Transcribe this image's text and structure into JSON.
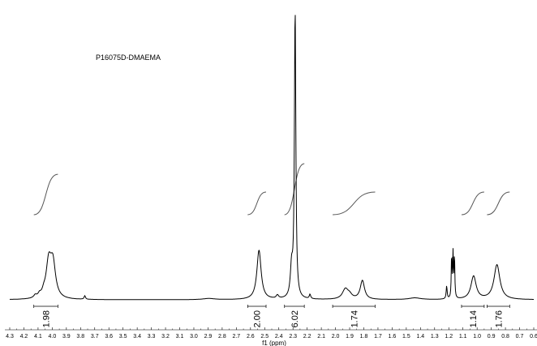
{
  "chart_data": {
    "type": "line",
    "title": "P16075D-DMAEMA",
    "xlabel": "f1 (ppm)",
    "xlim": [
      4.3,
      0.6
    ],
    "x_reversed": true,
    "ticks": [
      "4.3",
      "4.2",
      "4.1",
      "4.0",
      "3.9",
      "3.8",
      "3.7",
      "3.6",
      "3.5",
      "3.4",
      "3.3",
      "3.2",
      "3.1",
      "3.0",
      "2.9",
      "2.8",
      "2.7",
      "2.6",
      "2.5",
      "2.4",
      "2.3",
      "2.2",
      "2.1",
      "2.0",
      "1.9",
      "1.8",
      "1.7",
      "1.6",
      "1.5",
      "1.4",
      "1.3",
      "1.2",
      "1.1",
      "1.0",
      "0.9",
      "0.8",
      "0.7",
      "0.6"
    ],
    "tick_values": [
      4.3,
      4.2,
      4.1,
      4.0,
      3.9,
      3.8,
      3.7,
      3.6,
      3.5,
      3.4,
      3.3,
      3.2,
      3.1,
      3.0,
      2.9,
      2.8,
      2.7,
      2.6,
      2.5,
      2.4,
      2.3,
      2.2,
      2.1,
      2.0,
      1.9,
      1.8,
      1.7,
      1.6,
      1.5,
      1.4,
      1.3,
      1.2,
      1.1,
      1.0,
      0.9,
      0.8,
      0.7,
      0.6
    ],
    "peaks": [
      {
        "ppm": 4.12,
        "height": 0.009,
        "width": 0.012
      },
      {
        "ppm": 4.09,
        "height": 0.01,
        "width": 0.012
      },
      {
        "ppm": 4.06,
        "height": 0.012,
        "width": 0.012
      },
      {
        "ppm": 4.025,
        "height": 0.12,
        "width": 0.022
      },
      {
        "ppm": 3.995,
        "height": 0.115,
        "width": 0.022
      },
      {
        "ppm": 3.77,
        "height": 0.012,
        "width": 0.006
      },
      {
        "ppm": 2.895,
        "height": 0.004,
        "width": 0.05
      },
      {
        "ppm": 2.54,
        "height": 0.17,
        "width": 0.018
      },
      {
        "ppm": 2.41,
        "height": 0.012,
        "width": 0.01
      },
      {
        "ppm": 2.31,
        "height": 0.1,
        "width": 0.01
      },
      {
        "ppm": 2.285,
        "height": 1.0,
        "width": 0.006
      },
      {
        "ppm": 2.18,
        "height": 0.015,
        "width": 0.006
      },
      {
        "ppm": 1.93,
        "height": 0.035,
        "width": 0.025
      },
      {
        "ppm": 1.9,
        "height": 0.012,
        "width": 0.02
      },
      {
        "ppm": 1.81,
        "height": 0.065,
        "width": 0.018
      },
      {
        "ppm": 1.44,
        "height": 0.006,
        "width": 0.05
      },
      {
        "ppm": 1.215,
        "height": 0.045,
        "width": 0.004
      },
      {
        "ppm": 1.18,
        "height": 0.15,
        "width": 0.003
      },
      {
        "ppm": 1.17,
        "height": 0.15,
        "width": 0.003
      },
      {
        "ppm": 1.16,
        "height": 0.15,
        "width": 0.003
      },
      {
        "ppm": 1.025,
        "height": 0.08,
        "width": 0.022
      },
      {
        "ppm": 0.86,
        "height": 0.12,
        "width": 0.025
      }
    ],
    "integrals": [
      {
        "label": "1.98",
        "from": 4.13,
        "to": 3.96
      },
      {
        "label": "2.00",
        "from": 2.62,
        "to": 2.49
      },
      {
        "label": "6.02",
        "from": 2.36,
        "to": 2.22
      },
      {
        "label": "1.74",
        "from": 2.02,
        "to": 1.72
      },
      {
        "label": "1.14",
        "from": 1.11,
        "to": 0.95
      },
      {
        "label": "1.76",
        "from": 0.93,
        "to": 0.77
      }
    ]
  }
}
